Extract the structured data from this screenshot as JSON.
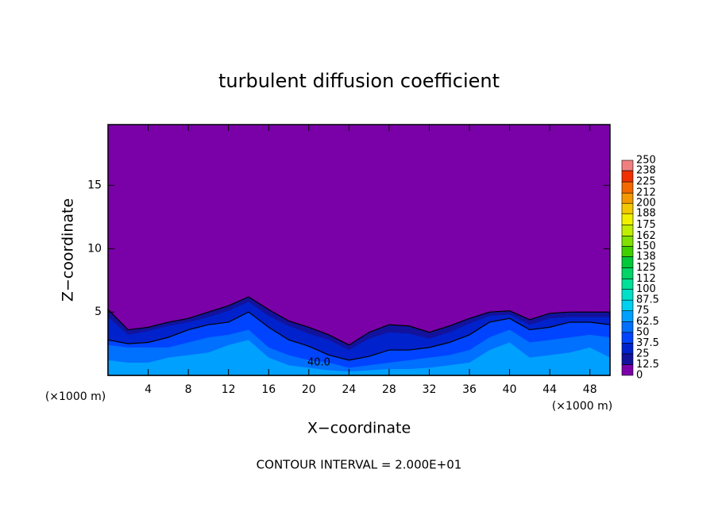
{
  "chart_data": {
    "type": "contour",
    "title": "turbulent diffusion coefficient",
    "xlabel": "X−coordinate",
    "ylabel": "Z−coordinate",
    "xunit": "(×1000 m)",
    "yunit": "(×1000 m)",
    "footer": "CONTOUR INTERVAL = 2.000E+01",
    "xlim": [
      0,
      50
    ],
    "xticks": [
      4,
      8,
      12,
      16,
      20,
      24,
      28,
      32,
      36,
      40,
      44,
      48
    ],
    "ylim": [
      0,
      19.8
    ],
    "yticks": [
      5,
      10,
      15
    ],
    "colorbar": {
      "levels": [
        0,
        12.5,
        25,
        37.5,
        50,
        62.5,
        75,
        87.5,
        100,
        112,
        125,
        138,
        150,
        162,
        175,
        188,
        200,
        212,
        225,
        238,
        250
      ],
      "colors": [
        "#7a00a8",
        "#12129c",
        "#0022cc",
        "#0044ff",
        "#0070ff",
        "#00a0ff",
        "#00d0f0",
        "#00e0c8",
        "#00e098",
        "#00d468",
        "#00c838",
        "#40d000",
        "#80e000",
        "#c0ee00",
        "#f0f000",
        "#f4c800",
        "#f49800",
        "#f46800",
        "#f03000",
        "#f08080"
      ]
    },
    "field": {
      "x": [
        0,
        2,
        4,
        6,
        8,
        10,
        12,
        14,
        16,
        18,
        20,
        22,
        24,
        26,
        28,
        30,
        32,
        34,
        36,
        38,
        40,
        42,
        44,
        46,
        48,
        50
      ],
      "levels": [
        {
          "value": 12.5,
          "top": [
            5.2,
            3.6,
            3.8,
            4.2,
            4.5,
            5.0,
            5.5,
            6.2,
            5.2,
            4.3,
            3.8,
            3.2,
            2.4,
            3.4,
            4.0,
            3.9,
            3.4,
            3.9,
            4.5,
            5.0,
            5.1,
            4.4,
            4.9,
            5.0,
            5.0,
            5.0
          ]
        },
        {
          "value": 25,
          "top": [
            4.6,
            3.2,
            3.5,
            3.9,
            4.2,
            4.6,
            5.1,
            5.8,
            4.7,
            3.9,
            3.3,
            2.8,
            2.0,
            2.9,
            3.4,
            3.3,
            2.9,
            3.4,
            4.1,
            4.7,
            4.8,
            4.0,
            4.5,
            4.6,
            4.6,
            4.6
          ]
        },
        {
          "value": 37.5,
          "top": [
            2.8,
            2.5,
            2.6,
            3.0,
            3.6,
            4.0,
            4.2,
            5.0,
            3.8,
            2.8,
            2.3,
            1.6,
            1.2,
            1.5,
            2.0,
            2.0,
            2.2,
            2.6,
            3.2,
            4.2,
            4.5,
            3.6,
            3.8,
            4.2,
            4.2,
            4.0
          ]
        },
        {
          "value": 50,
          "top": [
            2.4,
            2.2,
            2.2,
            2.2,
            2.6,
            3.0,
            3.2,
            3.6,
            2.2,
            1.6,
            1.2,
            1.0,
            0.6,
            0.8,
            1.0,
            1.2,
            1.4,
            1.6,
            2.0,
            3.0,
            3.6,
            2.6,
            2.8,
            3.0,
            3.2,
            3.0
          ]
        },
        {
          "value": 62.5,
          "top": [
            1.2,
            1.0,
            1.0,
            1.4,
            1.6,
            1.8,
            2.4,
            2.8,
            1.4,
            0.8,
            0.6,
            0.4,
            0.3,
            0.4,
            0.5,
            0.5,
            0.6,
            0.8,
            1.0,
            2.0,
            2.6,
            1.4,
            1.6,
            1.8,
            2.2,
            1.4
          ]
        }
      ]
    },
    "contour_labels": [
      {
        "value": 40,
        "label": "40.0",
        "x": 21,
        "y": 1.0
      }
    ]
  }
}
